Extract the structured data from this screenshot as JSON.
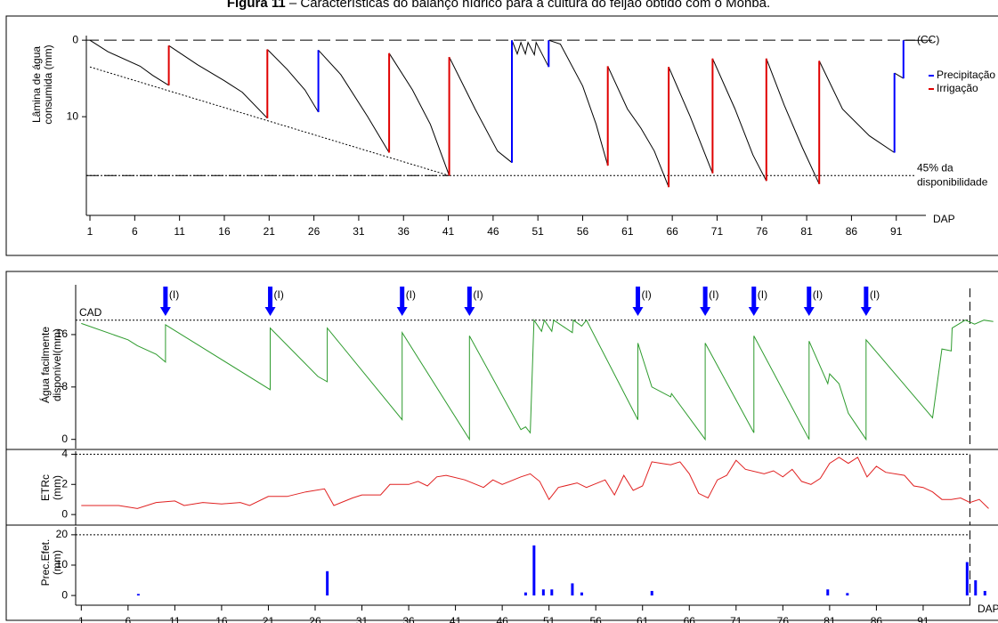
{
  "caption": {
    "label": "Figura 11",
    "text": "– Características do balanço hídrico para a cultura do feijão obtido com o Monba."
  },
  "chart_data": [
    {
      "type": "line",
      "ylabel": [
        "Lâmina de água",
        "consumida (mm)"
      ],
      "xlabel": "DAP",
      "xlim": [
        0.6,
        95.3
      ],
      "ylim": [
        22.9,
        -0.6
      ],
      "xticks": [
        1,
        6,
        11,
        16,
        21,
        26,
        31,
        36,
        41,
        46,
        51,
        56,
        61,
        66,
        71,
        76,
        81,
        86,
        91
      ],
      "yticks": [
        0,
        10
      ],
      "hlines": [
        {
          "value": 0,
          "label": [
            "(CC)"
          ],
          "style": "dashed"
        },
        {
          "value": 17.7,
          "label": [
            "45% da",
            "disponibilidade"
          ],
          "style": "dotted"
        }
      ],
      "guide": {
        "x": [
          1,
          41.1
        ],
        "values": [
          3.5,
          17.7
        ]
      },
      "series": [
        {
          "color": "#000000",
          "x": [
            1,
            3,
            6.6,
            8,
            9.8,
            null,
            9.8,
            13,
            16,
            18,
            20.8,
            null,
            20.8,
            23,
            25,
            26.5,
            null,
            26.5,
            29,
            32,
            34.4,
            null,
            34.4,
            37,
            39,
            41.1,
            null,
            41.1,
            44,
            46.5,
            48.1,
            null,
            48.1,
            48.7,
            49.1,
            49.6,
            49.9,
            50.6,
            50.8,
            52.2,
            null,
            52.2,
            53.5,
            56,
            57.5,
            58.8,
            null,
            58.8,
            61,
            62.5,
            64,
            65.6,
            null,
            65.6,
            68,
            70.5,
            null,
            70.5,
            73,
            75,
            76.5,
            null,
            76.5,
            78.5,
            80.5,
            82.4,
            null,
            82.4,
            85,
            88,
            90.8,
            null,
            90.8,
            91.8,
            null,
            91.8,
            95
          ],
          "values": [
            0,
            1.5,
            3.4,
            4.6,
            5.9,
            null,
            0.7,
            3.2,
            5.3,
            6.8,
            10.2,
            null,
            1.2,
            3.8,
            6.5,
            9.4,
            null,
            1.3,
            4.5,
            10,
            14.7,
            null,
            1.7,
            6.5,
            11,
            17.7,
            null,
            2.2,
            9,
            14.5,
            16,
            null,
            0,
            1.8,
            0.3,
            1.8,
            0.3,
            1.9,
            0.3,
            3.5,
            null,
            0,
            0.5,
            6,
            11,
            16.4,
            null,
            3.4,
            9,
            11.5,
            14.5,
            19.2,
            null,
            3.5,
            10,
            17.4,
            null,
            2.4,
            9,
            15,
            18.4,
            null,
            2.4,
            8.5,
            14,
            18.8,
            null,
            2.7,
            9,
            12.5,
            14.7,
            null,
            4.3,
            5,
            null,
            0,
            0
          ]
        },
        {
          "name": "Precipitação",
          "color": "#0000ff",
          "x": [
            26.5,
            26.5,
            null,
            48.1,
            48.1,
            null,
            52.2,
            52.2,
            null,
            90.8,
            90.8,
            null,
            91.8,
            91.8
          ],
          "values": [
            9.4,
            1.3,
            null,
            16,
            0,
            null,
            3.5,
            0,
            null,
            14.7,
            4.3,
            null,
            5,
            0
          ]
        },
        {
          "name": "Irrigação",
          "color": "#e00000",
          "x": [
            9.8,
            9.8,
            null,
            20.8,
            20.8,
            null,
            34.4,
            34.4,
            null,
            41.1,
            41.1,
            null,
            58.8,
            58.8,
            null,
            65.6,
            65.6,
            null,
            70.5,
            70.5,
            null,
            76.5,
            76.5,
            null,
            82.4,
            82.4
          ],
          "values": [
            5.9,
            0.7,
            null,
            10.2,
            1.2,
            null,
            14.7,
            1.7,
            null,
            17.7,
            2.2,
            null,
            16.4,
            3.4,
            null,
            19.2,
            3.5,
            null,
            17.4,
            2.4,
            null,
            18.4,
            2.4,
            null,
            18.8,
            2.7
          ]
        }
      ]
    },
    {
      "type": "line",
      "ylabel": [
        "Água facilmente",
        "disponível(mm)"
      ],
      "xlim": [
        0.4,
        99
      ],
      "ylim": [
        -1.4,
        23.6
      ],
      "yticks": [
        0,
        8,
        16
      ],
      "hlines": [
        {
          "value": 18.2,
          "label": [
            "CAD"
          ],
          "style": "dotted"
        }
      ],
      "vline": 96,
      "events": {
        "label": "(I)",
        "x": [
          10,
          21.2,
          35.3,
          42.5,
          60.5,
          67.7,
          72.9,
          78.8,
          84.9
        ]
      },
      "series": [
        {
          "color": "#2e9b2e",
          "x": [
            1,
            6,
            7,
            9,
            10,
            10,
            21.2,
            21.2,
            26.3,
            27.3,
            27.3,
            35.3,
            35.3,
            42.5,
            42.5,
            48,
            48.5,
            49,
            49.4,
            50.2,
            50.5,
            51.3,
            51.5,
            53.5,
            53.6,
            54.5,
            55,
            60.5,
            60.5,
            62,
            64,
            64.1,
            67.7,
            67.7,
            72.9,
            72.9,
            78.8,
            78.8,
            80.8,
            81,
            82,
            83,
            84.9,
            84.9,
            92,
            93,
            94,
            94.1,
            95.5,
            96.5,
            97.5,
            98.5
          ],
          "values": [
            17.7,
            15.2,
            14.3,
            13,
            11.8,
            17.5,
            7.6,
            17,
            9.6,
            8.8,
            17,
            3,
            16.3,
            0,
            15.8,
            1.5,
            1.9,
            1,
            18.2,
            16.5,
            18.2,
            16.5,
            18.2,
            16.3,
            18.2,
            17.3,
            18.2,
            3,
            14.7,
            8,
            6.5,
            7,
            0,
            14.7,
            1,
            15.8,
            0,
            15,
            8.5,
            10,
            8.5,
            4,
            0,
            15.2,
            3.3,
            13.8,
            13.5,
            17,
            18.2,
            17.6,
            18.2,
            18
          ]
        }
      ]
    },
    {
      "type": "line",
      "ylabel": [
        "ETRc",
        "(mm)"
      ],
      "xlim": [
        0.4,
        99
      ],
      "ylim": [
        -0.7,
        4.2
      ],
      "yticks": [
        0,
        2,
        4
      ],
      "hlines": [
        {
          "value": 4,
          "style": "dotted"
        }
      ],
      "vline": 96,
      "series": [
        {
          "color": "#e02020",
          "x": [
            1,
            3,
            5,
            7,
            9,
            11,
            12,
            14,
            16,
            18,
            19,
            21,
            23,
            25,
            27,
            28,
            30,
            31,
            33,
            34,
            36,
            37,
            38,
            39,
            40,
            42,
            44,
            45,
            46,
            48,
            49,
            50,
            51,
            52,
            54,
            55,
            57,
            58,
            59,
            60,
            61,
            62,
            63,
            64,
            65,
            66,
            67,
            68,
            69,
            70,
            71,
            72,
            74,
            75,
            76,
            77,
            78,
            79,
            80,
            81,
            82,
            83,
            84,
            85,
            86,
            87,
            89,
            90,
            91,
            92,
            93,
            94,
            95,
            96,
            97,
            98
          ],
          "values": [
            0.6,
            0.6,
            0.6,
            0.4,
            0.8,
            0.9,
            0.6,
            0.8,
            0.7,
            0.8,
            0.6,
            1.2,
            1.2,
            1.5,
            1.7,
            0.6,
            1.1,
            1.3,
            1.3,
            2,
            2,
            2.2,
            1.9,
            2.5,
            2.6,
            2.3,
            1.8,
            2.3,
            2,
            2.5,
            2.7,
            2.2,
            1,
            1.8,
            2.1,
            1.8,
            2.3,
            1.3,
            2.6,
            1.6,
            1.9,
            3.5,
            3.4,
            3.3,
            3.5,
            2.7,
            1.4,
            1.1,
            2.3,
            2.6,
            3.6,
            3,
            2.7,
            2.9,
            2.5,
            3,
            2.2,
            2,
            2.4,
            3.4,
            3.8,
            3.4,
            3.8,
            2.5,
            3.2,
            2.8,
            2.6,
            1.9,
            1.8,
            1.5,
            1,
            1,
            1.1,
            0.8,
            1,
            0.4
          ]
        }
      ]
    },
    {
      "type": "bar",
      "ylabel": [
        "Prec.Efet.",
        "(mm)"
      ],
      "xlabel": "DAP",
      "xlim": [
        0.4,
        99
      ],
      "ylim": [
        -3.2,
        22.6
      ],
      "yticks": [
        0,
        10,
        20
      ],
      "xticks": [
        1,
        6,
        11,
        16,
        21,
        26,
        31,
        36,
        41,
        46,
        51,
        56,
        61,
        66,
        71,
        76,
        81,
        86,
        91
      ],
      "hlines": [
        {
          "value": 20,
          "style": "dotted"
        }
      ],
      "vline": 96,
      "color": "#0000ff",
      "x": [
        7.1,
        27.3,
        48.5,
        49.4,
        50.4,
        51.3,
        53.5,
        54.5,
        62,
        80.8,
        82.9,
        95.7,
        96.6,
        97.6
      ],
      "values": [
        0.5,
        8,
        1,
        16.5,
        2,
        2,
        4,
        1,
        1.5,
        2,
        0.8,
        11,
        5,
        1.5
      ]
    }
  ]
}
